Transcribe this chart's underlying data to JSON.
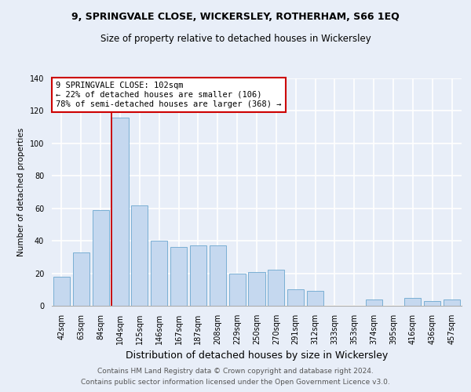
{
  "title1": "9, SPRINGVALE CLOSE, WICKERSLEY, ROTHERHAM, S66 1EQ",
  "title2": "Size of property relative to detached houses in Wickersley",
  "xlabel": "Distribution of detached houses by size in Wickersley",
  "ylabel": "Number of detached properties",
  "footer1": "Contains HM Land Registry data © Crown copyright and database right 2024.",
  "footer2": "Contains public sector information licensed under the Open Government Licence v3.0.",
  "categories": [
    "42sqm",
    "63sqm",
    "84sqm",
    "104sqm",
    "125sqm",
    "146sqm",
    "167sqm",
    "187sqm",
    "208sqm",
    "229sqm",
    "250sqm",
    "270sqm",
    "291sqm",
    "312sqm",
    "333sqm",
    "353sqm",
    "374sqm",
    "395sqm",
    "416sqm",
    "436sqm",
    "457sqm"
  ],
  "values": [
    18,
    33,
    59,
    116,
    62,
    40,
    36,
    37,
    37,
    20,
    21,
    22,
    10,
    9,
    0,
    0,
    4,
    0,
    5,
    3,
    4
  ],
  "bar_color": "#c5d8ef",
  "bar_edgecolor": "#7aafd4",
  "vline_color": "#cc0000",
  "annotation_text": "9 SPRINGVALE CLOSE: 102sqm\n← 22% of detached houses are smaller (106)\n78% of semi-detached houses are larger (368) →",
  "ylim": [
    0,
    140
  ],
  "yticks": [
    0,
    20,
    40,
    60,
    80,
    100,
    120,
    140
  ],
  "bg_color": "#e8eef8",
  "grid_color": "#ffffff",
  "title1_fontsize": 9,
  "title2_fontsize": 8.5,
  "xlabel_fontsize": 9,
  "ylabel_fontsize": 7.5,
  "tick_fontsize": 7,
  "footer_fontsize": 6.5,
  "annotation_fontsize": 7.5
}
